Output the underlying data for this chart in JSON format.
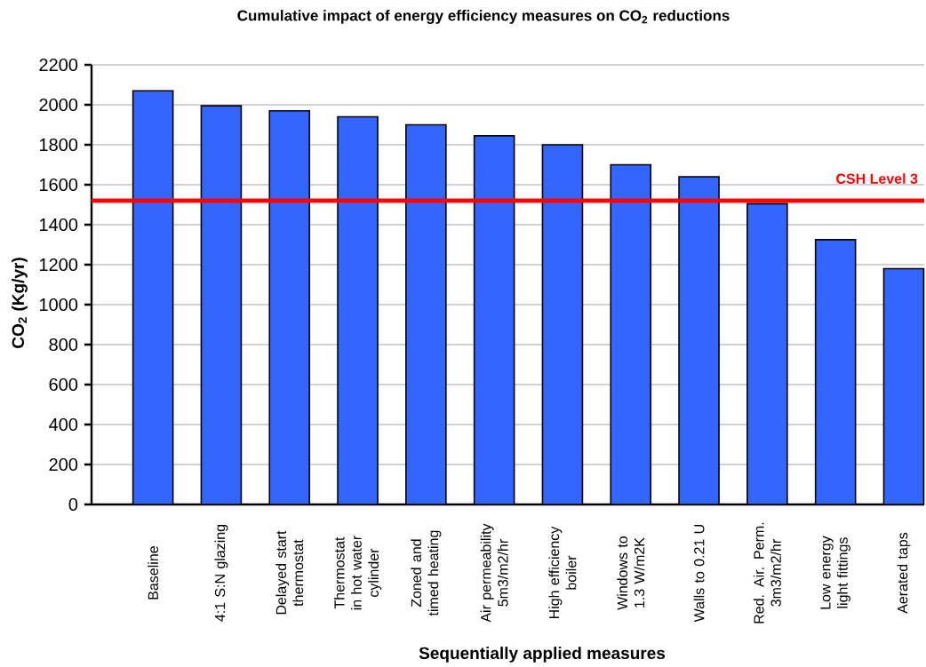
{
  "chart_data": {
    "type": "bar",
    "title": "Cumulative impact of energy efficiency measures on CO$_{2}$ reductions",
    "xlabel": "Sequentially applied measures",
    "ylabel": "CO$_{2}$ (Kg/yr)",
    "categories": [
      "Baseline",
      "4:1 S:N glazing",
      "Delayed start thermostat",
      "Thermostat in hot water cylinder",
      "Zoned and timed heating",
      "Air permeability 5m3/m2/hr",
      "High efficiency boiler",
      "Windows to 1.3 W/m2K",
      "Walls to 0.21 U",
      "Red. Air. Perm. 3m3/m2/hr",
      "Low energy light fittings",
      "Aerated taps"
    ],
    "values": [
      2070,
      1995,
      1970,
      1940,
      1900,
      1845,
      1800,
      1700,
      1640,
      1505,
      1325,
      1180
    ],
    "color": "#3366ff",
    "ylim": [
      0,
      2200
    ],
    "yticks": [
      0,
      200,
      400,
      600,
      800,
      1000,
      1200,
      1400,
      1600,
      1800,
      2000,
      2200
    ],
    "grid": "y",
    "ref_lines": [
      {
        "axis": "y",
        "value": 1520,
        "label": "CSH Level 3",
        "color": "#ff0000"
      }
    ]
  }
}
